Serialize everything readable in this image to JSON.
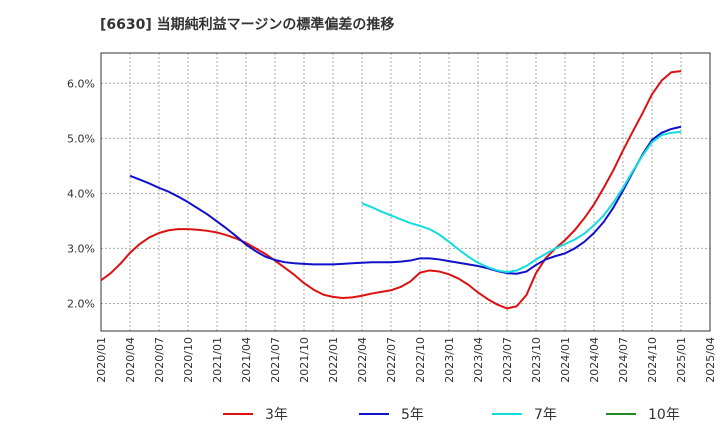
{
  "chart_data": {
    "type": "line",
    "title": "[6630]  当期純利益マージンの標準偏差の推移",
    "xlabel": "",
    "ylabel": "",
    "ylim": [
      1.5,
      6.55
    ],
    "yticks": [
      {
        "value": 2.0,
        "label": "2.0%"
      },
      {
        "value": 3.0,
        "label": "3.0%"
      },
      {
        "value": 4.0,
        "label": "4.0%"
      },
      {
        "value": 5.0,
        "label": "5.0%"
      },
      {
        "value": 6.0,
        "label": "6.0%"
      }
    ],
    "x_tick_labels": [
      "2020/01",
      "2020/04",
      "2020/07",
      "2020/10",
      "2021/01",
      "2021/04",
      "2021/07",
      "2021/10",
      "2022/01",
      "2022/04",
      "2022/07",
      "2022/10",
      "2023/01",
      "2023/04",
      "2023/07",
      "2023/10",
      "2024/01",
      "2024/04",
      "2024/07",
      "2024/10",
      "2025/01",
      "2025/04"
    ],
    "grid": true,
    "legend_position": "bottom",
    "series": [
      {
        "name": "3年",
        "color": "#dd1111",
        "points": [
          [
            "2020/01",
            2.42
          ],
          [
            "2020/02",
            2.55
          ],
          [
            "2020/03",
            2.72
          ],
          [
            "2020/04",
            2.92
          ],
          [
            "2020/05",
            3.08
          ],
          [
            "2020/06",
            3.2
          ],
          [
            "2020/07",
            3.28
          ],
          [
            "2020/08",
            3.33
          ],
          [
            "2020/09",
            3.35
          ],
          [
            "2020/10",
            3.35
          ],
          [
            "2020/11",
            3.34
          ],
          [
            "2020/12",
            3.32
          ],
          [
            "2021/01",
            3.29
          ],
          [
            "2021/02",
            3.24
          ],
          [
            "2021/03",
            3.18
          ],
          [
            "2021/04",
            3.1
          ],
          [
            "2021/05",
            3.0
          ],
          [
            "2021/06",
            2.9
          ],
          [
            "2021/07",
            2.78
          ],
          [
            "2021/08",
            2.65
          ],
          [
            "2021/09",
            2.52
          ],
          [
            "2021/10",
            2.37
          ],
          [
            "2021/11",
            2.25
          ],
          [
            "2021/12",
            2.16
          ],
          [
            "2022/01",
            2.12
          ],
          [
            "2022/02",
            2.1
          ],
          [
            "2022/03",
            2.11
          ],
          [
            "2022/04",
            2.14
          ],
          [
            "2022/05",
            2.18
          ],
          [
            "2022/06",
            2.21
          ],
          [
            "2022/07",
            2.24
          ],
          [
            "2022/08",
            2.3
          ],
          [
            "2022/09",
            2.4
          ],
          [
            "2022/10",
            2.56
          ],
          [
            "2022/11",
            2.6
          ],
          [
            "2022/12",
            2.58
          ],
          [
            "2023/01",
            2.53
          ],
          [
            "2023/02",
            2.45
          ],
          [
            "2023/03",
            2.34
          ],
          [
            "2023/04",
            2.2
          ],
          [
            "2023/05",
            2.08
          ],
          [
            "2023/06",
            1.98
          ],
          [
            "2023/07",
            1.91
          ],
          [
            "2023/08",
            1.95
          ],
          [
            "2023/09",
            2.15
          ],
          [
            "2023/10",
            2.55
          ],
          [
            "2023/11",
            2.82
          ],
          [
            "2023/12",
            3.0
          ],
          [
            "2024/01",
            3.15
          ],
          [
            "2024/02",
            3.33
          ],
          [
            "2024/03",
            3.55
          ],
          [
            "2024/04",
            3.8
          ],
          [
            "2024/05",
            4.1
          ],
          [
            "2024/06",
            4.42
          ],
          [
            "2024/07",
            4.78
          ],
          [
            "2024/08",
            5.12
          ],
          [
            "2024/09",
            5.45
          ],
          [
            "2024/10",
            5.8
          ],
          [
            "2024/11",
            6.05
          ],
          [
            "2024/12",
            6.2
          ],
          [
            "2025/01",
            6.22
          ]
        ]
      },
      {
        "name": "5年",
        "color": "#1111cc",
        "points": [
          [
            "2020/04",
            4.32
          ],
          [
            "2020/05",
            4.25
          ],
          [
            "2020/06",
            4.18
          ],
          [
            "2020/07",
            4.1
          ],
          [
            "2020/08",
            4.03
          ],
          [
            "2020/09",
            3.94
          ],
          [
            "2020/10",
            3.84
          ],
          [
            "2020/11",
            3.73
          ],
          [
            "2020/12",
            3.62
          ],
          [
            "2021/01",
            3.49
          ],
          [
            "2021/02",
            3.36
          ],
          [
            "2021/03",
            3.22
          ],
          [
            "2021/04",
            3.07
          ],
          [
            "2021/05",
            2.95
          ],
          [
            "2021/06",
            2.85
          ],
          [
            "2021/07",
            2.79
          ],
          [
            "2021/08",
            2.75
          ],
          [
            "2021/09",
            2.73
          ],
          [
            "2021/10",
            2.72
          ],
          [
            "2021/11",
            2.71
          ],
          [
            "2021/12",
            2.71
          ],
          [
            "2022/01",
            2.71
          ],
          [
            "2022/02",
            2.72
          ],
          [
            "2022/03",
            2.73
          ],
          [
            "2022/04",
            2.74
          ],
          [
            "2022/05",
            2.75
          ],
          [
            "2022/06",
            2.75
          ],
          [
            "2022/07",
            2.75
          ],
          [
            "2022/08",
            2.76
          ],
          [
            "2022/09",
            2.78
          ],
          [
            "2022/10",
            2.82
          ],
          [
            "2022/11",
            2.82
          ],
          [
            "2022/12",
            2.8
          ],
          [
            "2023/01",
            2.77
          ],
          [
            "2023/02",
            2.74
          ],
          [
            "2023/03",
            2.71
          ],
          [
            "2023/04",
            2.68
          ],
          [
            "2023/05",
            2.64
          ],
          [
            "2023/06",
            2.59
          ],
          [
            "2023/07",
            2.55
          ],
          [
            "2023/08",
            2.54
          ],
          [
            "2023/09",
            2.58
          ],
          [
            "2023/10",
            2.7
          ],
          [
            "2023/11",
            2.8
          ],
          [
            "2023/12",
            2.86
          ],
          [
            "2024/01",
            2.91
          ],
          [
            "2024/02",
            3.0
          ],
          [
            "2024/03",
            3.12
          ],
          [
            "2024/04",
            3.28
          ],
          [
            "2024/05",
            3.48
          ],
          [
            "2024/06",
            3.74
          ],
          [
            "2024/07",
            4.05
          ],
          [
            "2024/08",
            4.38
          ],
          [
            "2024/09",
            4.7
          ],
          [
            "2024/10",
            4.97
          ],
          [
            "2024/11",
            5.1
          ],
          [
            "2024/12",
            5.17
          ],
          [
            "2025/01",
            5.21
          ]
        ]
      },
      {
        "name": "7年",
        "color": "#11dddd",
        "points": [
          [
            "2022/04",
            3.82
          ],
          [
            "2022/05",
            3.75
          ],
          [
            "2022/06",
            3.67
          ],
          [
            "2022/07",
            3.6
          ],
          [
            "2022/08",
            3.53
          ],
          [
            "2022/09",
            3.46
          ],
          [
            "2022/10",
            3.41
          ],
          [
            "2022/11",
            3.35
          ],
          [
            "2022/12",
            3.25
          ],
          [
            "2023/01",
            3.12
          ],
          [
            "2023/02",
            2.98
          ],
          [
            "2023/03",
            2.85
          ],
          [
            "2023/04",
            2.74
          ],
          [
            "2023/05",
            2.66
          ],
          [
            "2023/06",
            2.6
          ],
          [
            "2023/07",
            2.57
          ],
          [
            "2023/08",
            2.6
          ],
          [
            "2023/09",
            2.68
          ],
          [
            "2023/10",
            2.8
          ],
          [
            "2023/11",
            2.9
          ],
          [
            "2023/12",
            3.0
          ],
          [
            "2024/01",
            3.08
          ],
          [
            "2024/02",
            3.16
          ],
          [
            "2024/03",
            3.27
          ],
          [
            "2024/04",
            3.42
          ],
          [
            "2024/05",
            3.6
          ],
          [
            "2024/06",
            3.83
          ],
          [
            "2024/07",
            4.1
          ],
          [
            "2024/08",
            4.4
          ],
          [
            "2024/09",
            4.68
          ],
          [
            "2024/10",
            4.93
          ],
          [
            "2024/11",
            5.06
          ],
          [
            "2024/12",
            5.1
          ],
          [
            "2025/01",
            5.12
          ]
        ]
      },
      {
        "name": "10年",
        "color": "#228822",
        "points": []
      }
    ]
  }
}
